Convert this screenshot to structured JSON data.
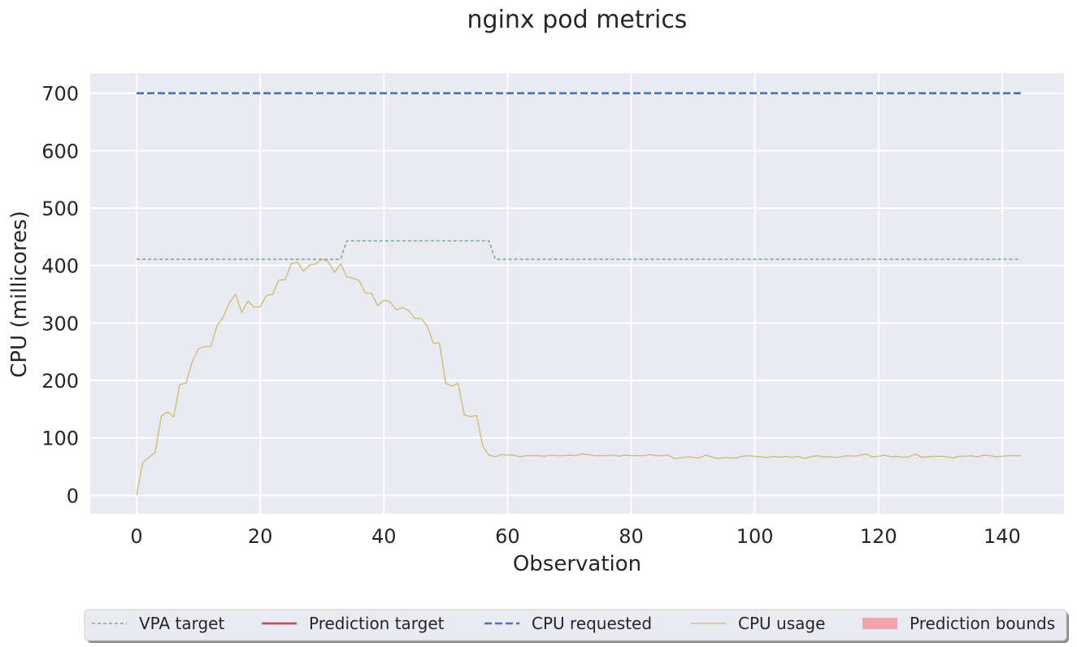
{
  "chart_data": {
    "type": "line",
    "title": "nginx pod metrics",
    "xlabel": "Observation",
    "ylabel": "CPU (millicores)",
    "xlim": [
      -7.5,
      150
    ],
    "ylim": [
      -32,
      735
    ],
    "xticks": [
      0,
      20,
      40,
      60,
      80,
      100,
      120,
      140
    ],
    "yticks": [
      0,
      100,
      200,
      300,
      400,
      500,
      600,
      700
    ],
    "grid": true,
    "legend_position": "bottom-center",
    "legend": [
      {
        "label": "VPA target",
        "color": "#55a868",
        "style": "dashed-thin",
        "kind": "line"
      },
      {
        "label": "Prediction target",
        "color": "#c44e52",
        "style": "solid",
        "kind": "line"
      },
      {
        "label": "CPU requested",
        "color": "#4c72b0",
        "style": "dashed",
        "kind": "line"
      },
      {
        "label": "CPU usage",
        "color": "#ccb974",
        "style": "solid-thin",
        "kind": "line"
      },
      {
        "label": "Prediction bounds",
        "color": "#f0a6aa",
        "style": "fill",
        "kind": "patch"
      }
    ],
    "series": [
      {
        "name": "VPA target",
        "color": "#55a868",
        "x": [
          0,
          33,
          34,
          57,
          58,
          143
        ],
        "y": [
          411,
          411,
          443,
          443,
          411,
          411
        ]
      },
      {
        "name": "CPU requested",
        "color": "#4c72b0",
        "x": [
          0,
          143
        ],
        "y": [
          700,
          700
        ]
      },
      {
        "name": "CPU usage",
        "color": "#ccb974",
        "y": [
          0,
          57,
          66,
          75,
          138,
          145,
          137,
          193,
          195,
          233,
          255,
          259,
          259,
          295,
          310,
          335,
          350,
          318,
          338,
          328,
          328,
          348,
          350,
          375,
          375,
          403,
          406,
          390,
          401,
          403,
          411,
          407,
          388,
          403,
          380,
          378,
          374,
          352,
          352,
          330,
          340,
          337,
          323,
          327,
          322,
          308,
          308,
          295,
          265,
          265,
          195,
          190,
          195,
          140,
          137,
          139,
          85,
          70,
          67,
          71,
          70,
          70,
          67,
          69,
          69,
          69,
          68,
          70,
          69,
          69,
          70,
          69,
          72,
          71,
          69,
          69,
          69,
          70,
          68,
          70,
          69,
          69,
          69,
          71,
          69,
          69,
          70,
          64,
          65,
          67,
          66,
          65,
          70,
          67,
          64,
          66,
          65,
          65,
          68,
          69,
          68,
          67,
          66,
          68,
          66,
          68,
          66,
          68,
          64,
          67,
          69,
          67,
          67,
          66,
          67,
          69,
          68,
          70,
          72,
          67,
          68,
          70,
          67,
          68,
          66,
          67,
          72,
          66,
          67,
          68,
          68,
          67,
          65,
          68,
          68,
          69,
          67,
          70,
          69,
          67,
          68,
          69,
          69,
          69
        ]
      }
    ]
  }
}
